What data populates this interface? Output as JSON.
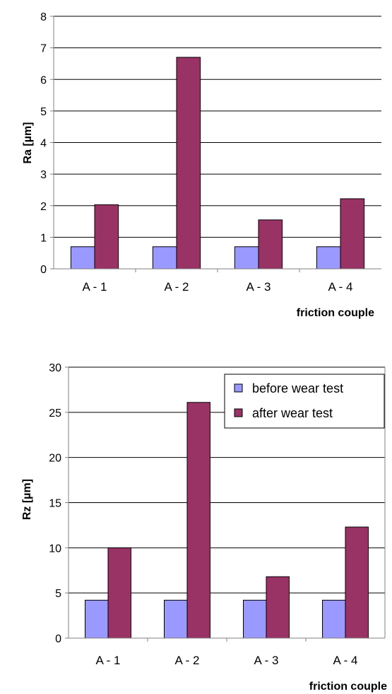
{
  "chart_data": [
    {
      "type": "bar",
      "categories": [
        "A - 1",
        "A - 2",
        "A - 3",
        "A - 4"
      ],
      "series": [
        {
          "name": "before wear test",
          "values": [
            0.7,
            0.7,
            0.7,
            0.7
          ]
        },
        {
          "name": "after wear test",
          "values": [
            2.03,
            6.7,
            1.55,
            2.22
          ]
        }
      ],
      "xlabel": "friction couple",
      "ylabel": "Ra  [µm]",
      "ylim": [
        0,
        8
      ],
      "yticks": [
        0,
        1,
        2,
        3,
        4,
        5,
        6,
        7,
        8
      ],
      "grid": true,
      "legend": "none"
    },
    {
      "type": "bar",
      "categories": [
        "A - 1",
        "A - 2",
        "A - 3",
        "A - 4"
      ],
      "series": [
        {
          "name": "before wear test",
          "values": [
            4.2,
            4.2,
            4.2,
            4.2
          ]
        },
        {
          "name": "after wear test",
          "values": [
            10.0,
            26.1,
            6.8,
            12.3
          ]
        }
      ],
      "xlabel": "friction couple",
      "ylabel": "Rz  [µm]",
      "ylim": [
        0,
        30
      ],
      "yticks": [
        0,
        5,
        10,
        15,
        20,
        25,
        30
      ],
      "grid": true,
      "legend": "top-right"
    }
  ],
  "colors": {
    "before": "#9999ff",
    "after": "#993366",
    "grid": "#000000",
    "axis": "#808080"
  }
}
